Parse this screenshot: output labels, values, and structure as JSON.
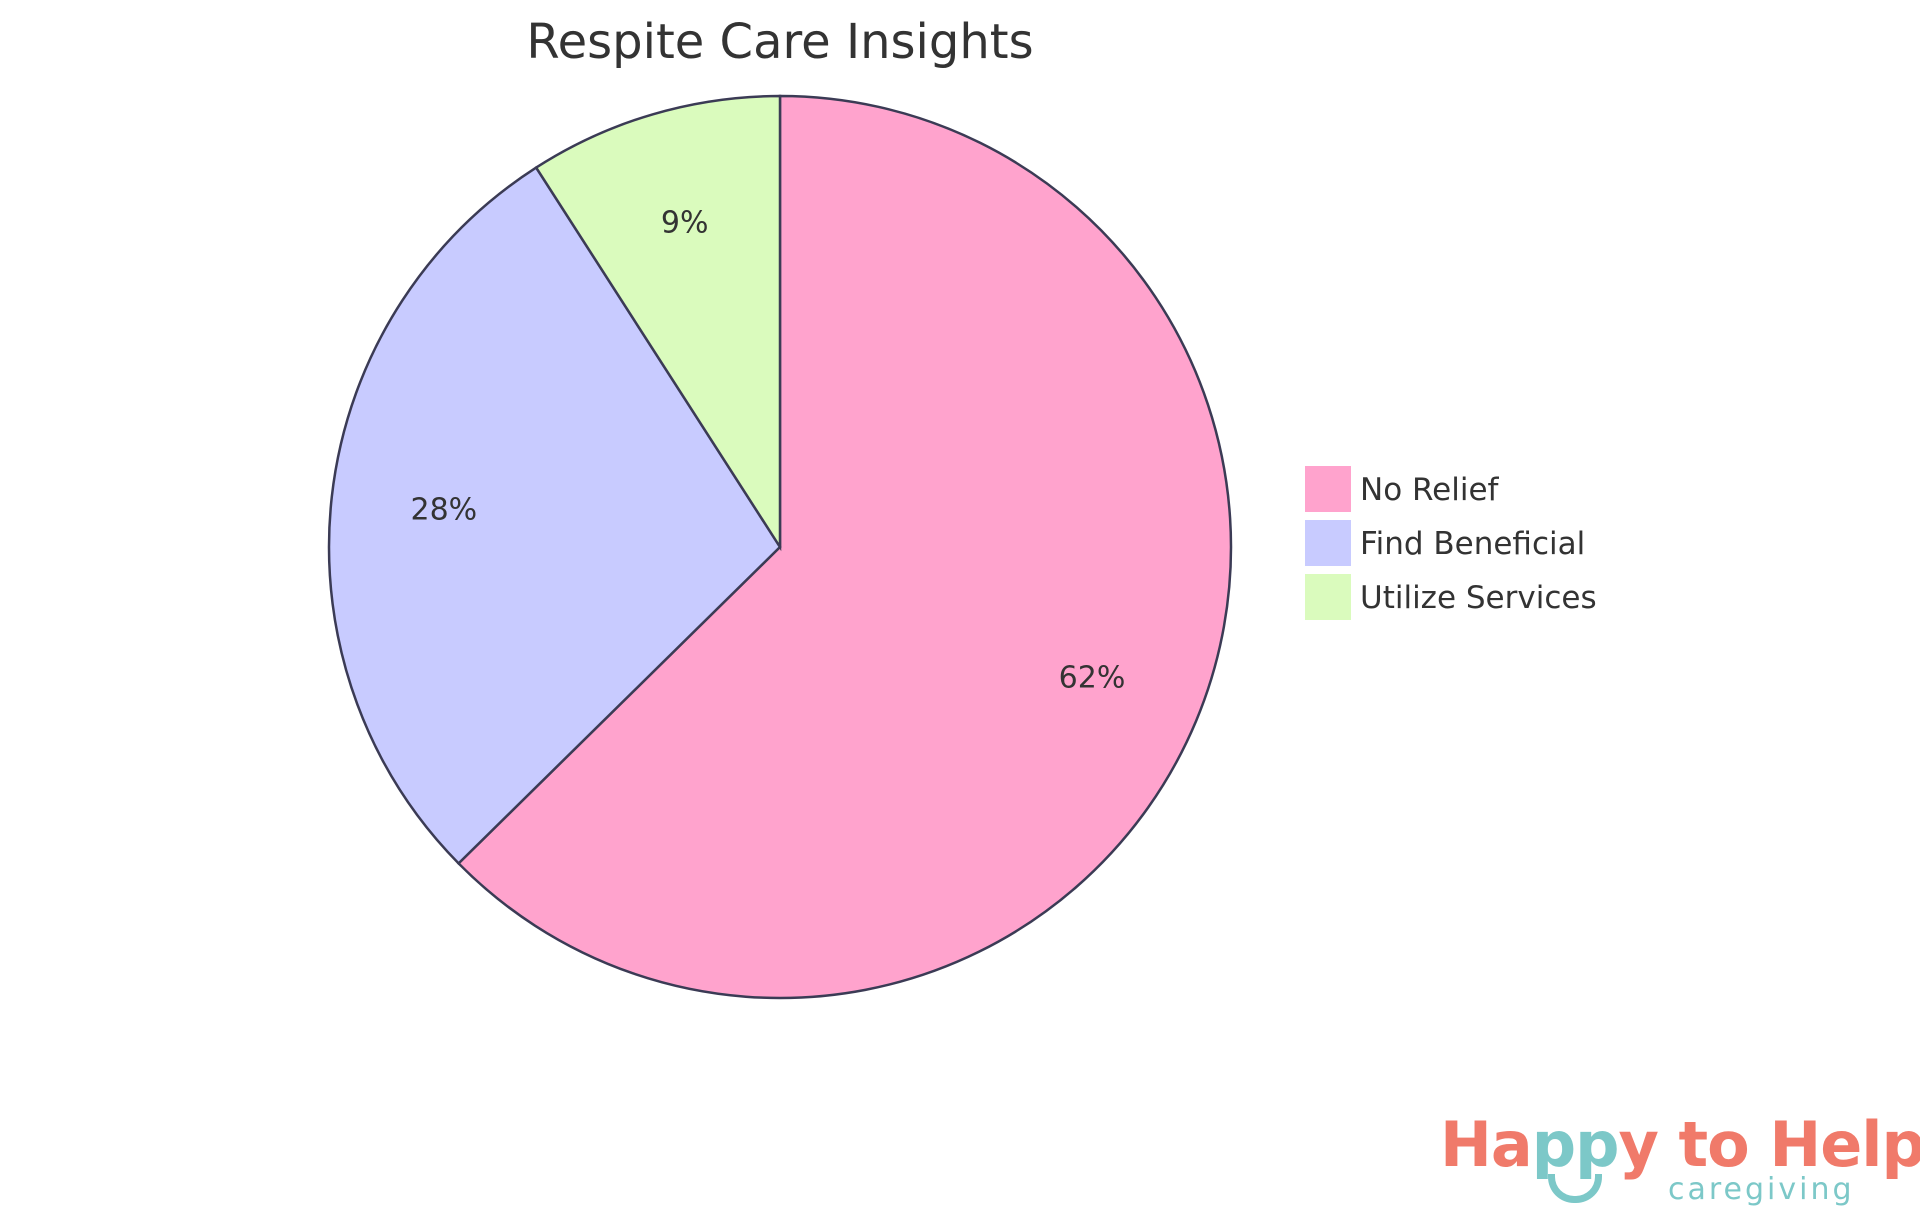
{
  "chart_data": {
    "type": "pie",
    "title": "Respite Care Insights",
    "slices": [
      {
        "label": "No Relief",
        "value": 62,
        "display": "62%",
        "color": "#ffa3cd"
      },
      {
        "label": "Find Beneficial",
        "value": 28,
        "display": "28%",
        "color": "#c8cbff"
      },
      {
        "label": "Utilize Services",
        "value": 9,
        "display": "9%",
        "color": "#dafbbd"
      }
    ],
    "stroke_color": "#3b3b55",
    "start": "top",
    "direction": "clockwise",
    "legend_placement": "right"
  },
  "logo": {
    "main": "Happy to Help",
    "part1": "Ha",
    "part2": "pp",
    "part3": "y to Help",
    "sub": "caregiving",
    "coral": "#f07a6a",
    "teal": "#7cc8c8"
  }
}
